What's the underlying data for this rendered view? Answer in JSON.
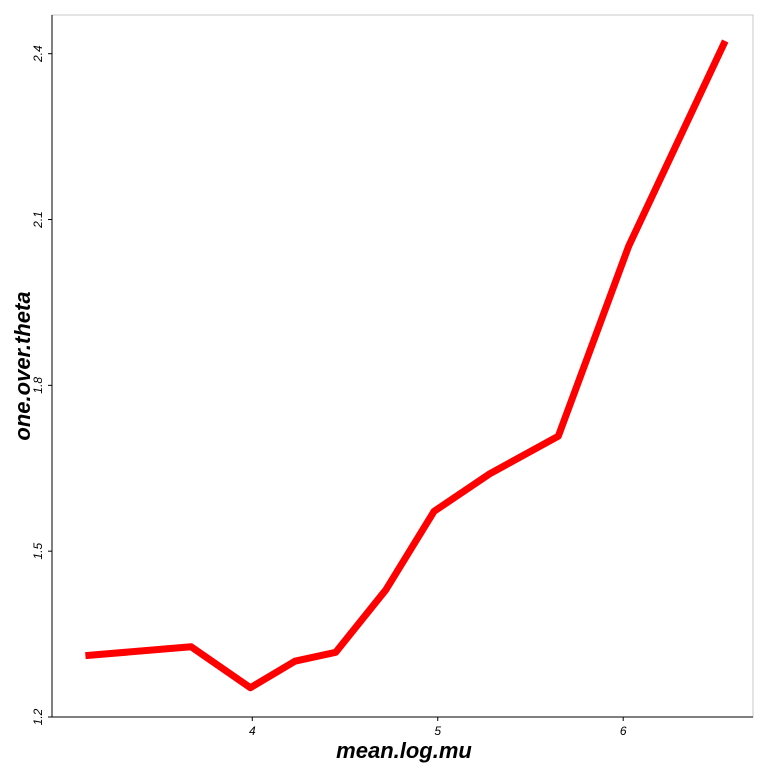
{
  "chart_data": {
    "type": "line",
    "title": "",
    "xlabel": "mean.log.mu",
    "ylabel": "one.over.theta",
    "xlim": [
      2.92,
      6.7
    ],
    "ylim": [
      1.2,
      2.47
    ],
    "x_ticks": [
      4,
      5,
      6
    ],
    "x_tick_labels": [
      "4",
      "5",
      "6"
    ],
    "y_ticks": [
      1.2,
      1.5,
      1.8,
      2.1,
      2.4
    ],
    "y_tick_labels": [
      "1.2",
      "1.5",
      "1.8",
      "2.1",
      "2.4"
    ],
    "grid": false,
    "legend": "none",
    "series": [
      {
        "color": "#ff0000",
        "x": [
          3.1,
          3.67,
          3.99,
          4.23,
          4.45,
          4.72,
          4.98,
          5.28,
          5.65,
          6.03,
          6.55
        ],
        "y": [
          1.311,
          1.327,
          1.253,
          1.301,
          1.317,
          1.43,
          1.572,
          1.64,
          1.708,
          2.052,
          2.423
        ]
      }
    ]
  }
}
